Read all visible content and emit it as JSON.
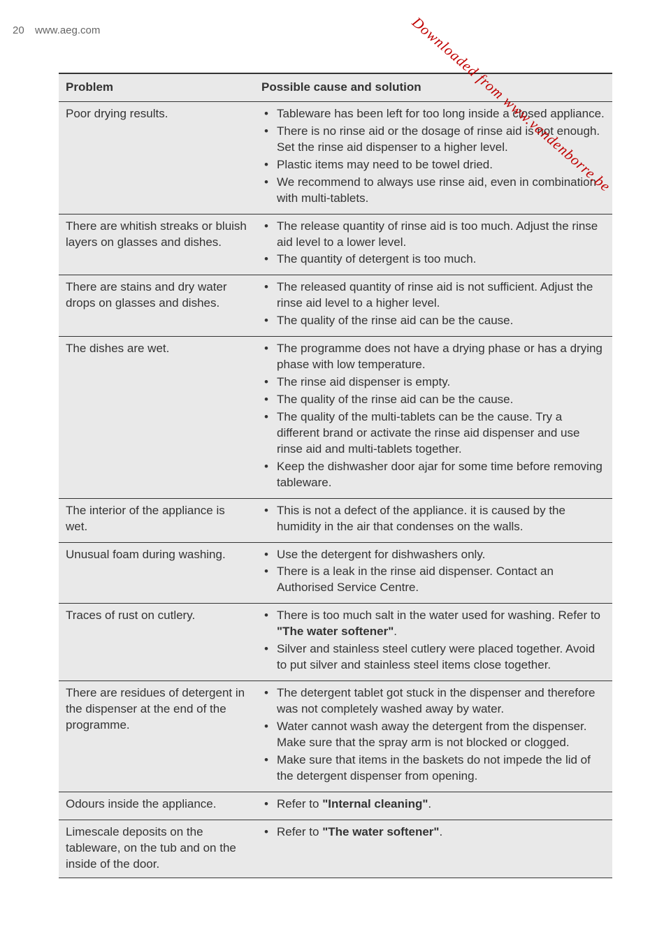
{
  "page": {
    "number": "20",
    "url": "www.aeg.com",
    "watermark": "Downloaded from www.vandenborre.be"
  },
  "colors": {
    "row_bg": "#e9e9e9",
    "border": "#333333",
    "text": "#333333",
    "watermark": "#c00000",
    "header_text": "#666666",
    "page_bg": "#ffffff"
  },
  "table": {
    "headers": {
      "problem": "Problem",
      "solution": "Possible cause and solution"
    },
    "rows": [
      {
        "problem": "Poor drying results.",
        "solutions": [
          {
            "text": "Tableware has been left for too long inside a closed appliance."
          },
          {
            "text": "There is no rinse aid or the dosage of rinse aid is not enough. Set the rinse aid dispenser to a higher level."
          },
          {
            "text": "Plastic items may need to be towel dried."
          },
          {
            "text": "We recommend to always use rinse aid, even in combination with multi-tablets."
          }
        ]
      },
      {
        "problem": "There are whitish streaks or bluish layers on glasses and dishes.",
        "solutions": [
          {
            "text": "The release quantity of rinse aid is too much. Adjust the rinse aid level to a lower level."
          },
          {
            "text": "The quantity of detergent is too much."
          }
        ]
      },
      {
        "problem": "There are stains and dry water drops on glasses and dishes.",
        "solutions": [
          {
            "text": "The released quantity of rinse aid is not sufficient. Adjust the rinse aid level to a higher level."
          },
          {
            "text": "The quality of the rinse aid can be the cause."
          }
        ]
      },
      {
        "problem": "The dishes are wet.",
        "solutions": [
          {
            "text": "The programme does not have a drying phase or has a drying phase with low temperature."
          },
          {
            "text": "The rinse aid dispenser is empty."
          },
          {
            "text": "The quality of the rinse aid can be the cause."
          },
          {
            "text": "The quality of the multi-tablets can be the cause. Try a different brand or activate the rinse aid dispenser and use rinse aid and multi-tablets together."
          },
          {
            "text": "Keep the dishwasher door ajar for some time before removing tableware."
          }
        ]
      },
      {
        "problem": "The interior of the appliance is wet.",
        "solutions": [
          {
            "text": "This is not a defect of the appliance. it is caused by the humidity in the air that condenses on the walls."
          }
        ]
      },
      {
        "problem": "Unusual foam during washing.",
        "solutions": [
          {
            "text": "Use the detergent for dishwashers only."
          },
          {
            "text": "There is a leak in the rinse aid dispenser. Contact an Authorised Service Centre."
          }
        ]
      },
      {
        "problem": "Traces of rust on cutlery.",
        "solutions": [
          {
            "pre": "There is too much salt in the water used for washing. Refer to ",
            "bold": "\"The water softener\"",
            "post": "."
          },
          {
            "text": "Silver and stainless steel cutlery were placed together. Avoid to put silver and stainless steel items close together."
          }
        ]
      },
      {
        "problem": "There are residues of detergent in the dispenser at the end of the programme.",
        "solutions": [
          {
            "text": "The detergent tablet got stuck in the dispenser and therefore was not completely washed away by water."
          },
          {
            "text": "Water cannot wash away the detergent from the dispenser. Make sure that the spray arm is not blocked or clogged."
          },
          {
            "text": "Make sure that items in the baskets do not impede the lid of the detergent dispenser from opening."
          }
        ]
      },
      {
        "problem": "Odours inside the appliance.",
        "solutions": [
          {
            "pre": "Refer to ",
            "bold": "\"Internal cleaning\"",
            "post": "."
          }
        ]
      },
      {
        "problem": "Limescale deposits on the tableware, on the tub and on the inside of the door.",
        "solutions": [
          {
            "pre": "Refer to ",
            "bold": "\"The water softener\"",
            "post": "."
          }
        ]
      }
    ]
  }
}
